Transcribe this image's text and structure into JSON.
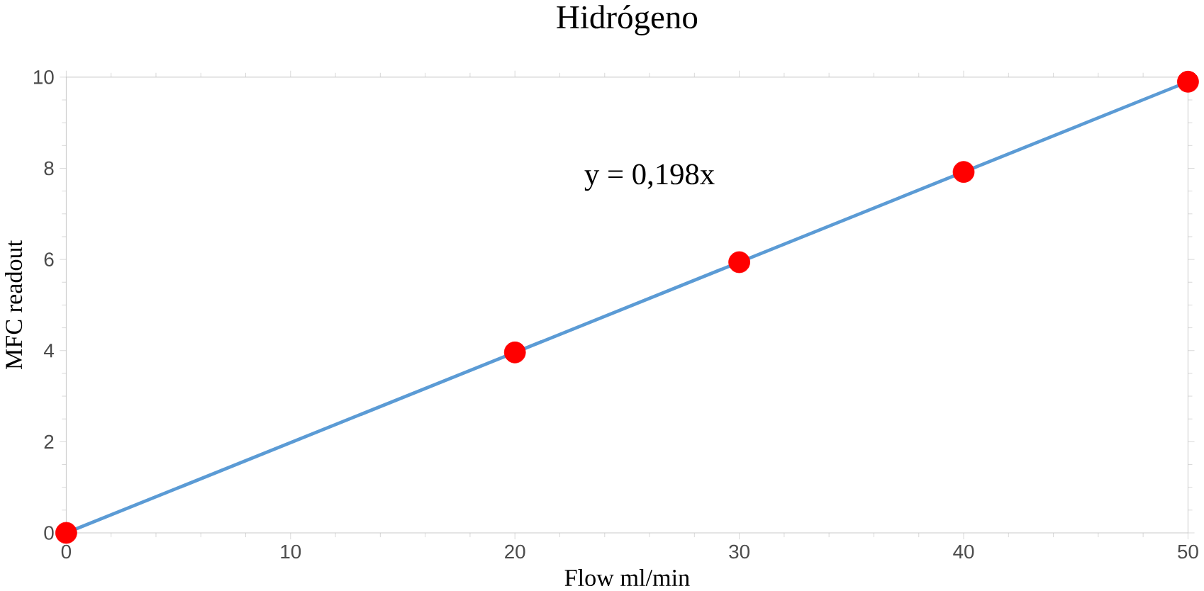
{
  "chart_data": {
    "type": "scatter",
    "title": "Hidrógeno",
    "xlabel": "Flow ml/min",
    "ylabel": "MFC readout",
    "xlim": [
      0,
      50
    ],
    "ylim": [
      0,
      10
    ],
    "xticks": [
      0,
      10,
      20,
      30,
      40,
      50
    ],
    "yticks": [
      0,
      2,
      4,
      6,
      8,
      10
    ],
    "grid": false,
    "series": [
      {
        "type": "line",
        "color": "#5b9bd5",
        "x": [
          0,
          50
        ],
        "values": [
          0,
          9.9
        ]
      },
      {
        "marker": "circle",
        "color": "#ff0000",
        "x": [
          0,
          20,
          30,
          40,
          50
        ],
        "values": [
          0,
          3.96,
          5.94,
          7.92,
          9.9
        ]
      }
    ],
    "annotations": [
      "y = 0,198x"
    ]
  }
}
